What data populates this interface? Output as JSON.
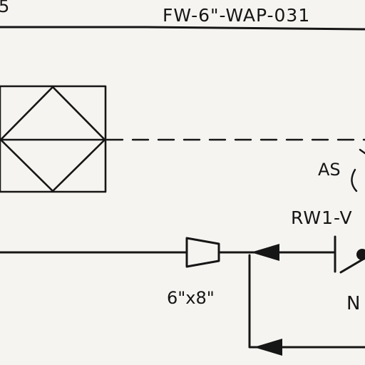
{
  "labels": {
    "top_left_fragment": "5",
    "line_number": "FW-6\"-WAP-031",
    "as_label": "AS",
    "rw_label": "RW1-V",
    "reducer_label": "6\"x8\"",
    "n_fragment": "N"
  },
  "symbols": {
    "equipment_box": "equipment-box-with-diamond",
    "reducer": "concentric-reducer",
    "flow_arrows": "filled-flow-arrow",
    "valve": "gate-valve-partial"
  },
  "colors": {
    "background": "#f5f4f0",
    "ink": "#161616"
  }
}
